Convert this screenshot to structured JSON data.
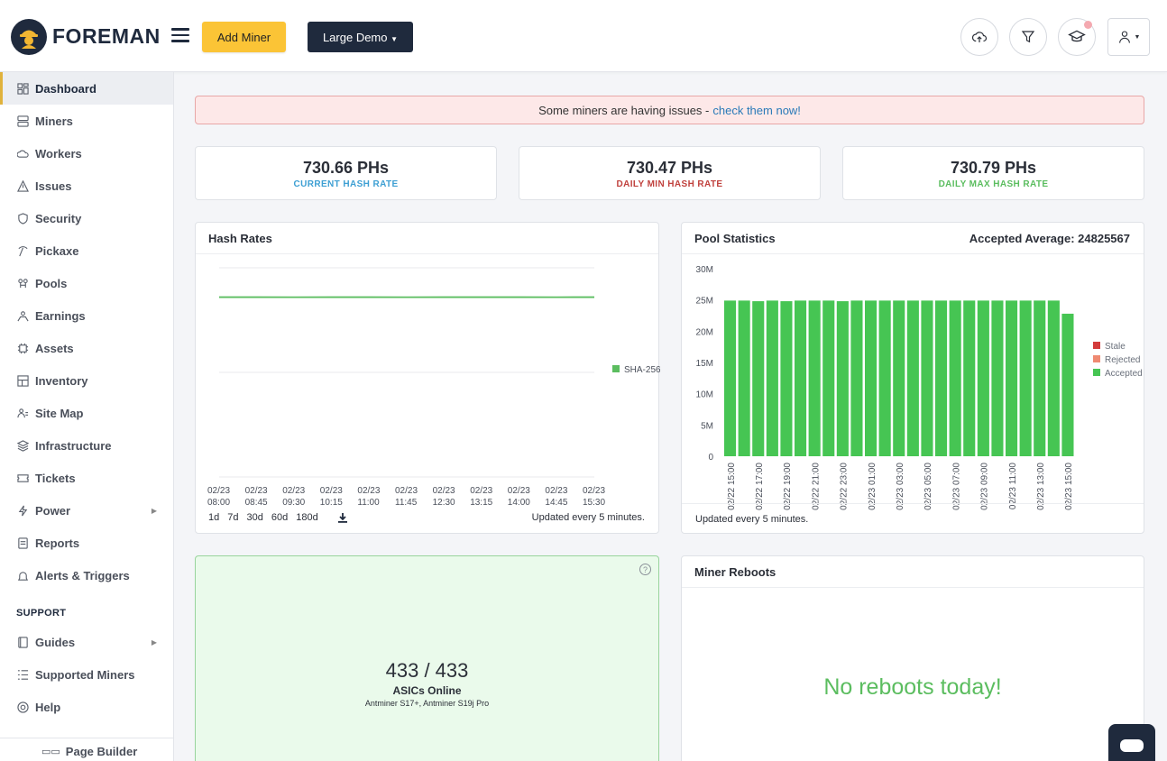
{
  "header": {
    "brand": "FOREMAN",
    "add_miner_label": "Add Miner",
    "site_select_label": "Large Demo"
  },
  "sidebar": {
    "items": [
      {
        "label": "Dashboard",
        "icon": "dashboard-icon"
      },
      {
        "label": "Miners",
        "icon": "server-icon"
      },
      {
        "label": "Workers",
        "icon": "cloud-icon"
      },
      {
        "label": "Issues",
        "icon": "warning-icon"
      },
      {
        "label": "Security",
        "icon": "shield-icon"
      },
      {
        "label": "Pickaxe",
        "icon": "pickaxe-icon"
      },
      {
        "label": "Pools",
        "icon": "pools-icon"
      },
      {
        "label": "Earnings",
        "icon": "earnings-icon"
      },
      {
        "label": "Assets",
        "icon": "chip-icon"
      },
      {
        "label": "Inventory",
        "icon": "inventory-icon"
      },
      {
        "label": "Site Map",
        "icon": "sitemap-icon"
      },
      {
        "label": "Infrastructure",
        "icon": "layers-icon"
      },
      {
        "label": "Tickets",
        "icon": "ticket-icon"
      },
      {
        "label": "Power",
        "icon": "bolt-icon"
      },
      {
        "label": "Reports",
        "icon": "report-icon"
      },
      {
        "label": "Alerts & Triggers",
        "icon": "bell-icon"
      }
    ],
    "support_heading": "SUPPORT",
    "support_items": [
      {
        "label": "Guides",
        "icon": "book-icon"
      },
      {
        "label": "Supported Miners",
        "icon": "list-icon"
      },
      {
        "label": "Help",
        "icon": "help-icon"
      }
    ],
    "page_builder_label": "Page Builder"
  },
  "alert": {
    "text": "Some miners are having issues -",
    "link": "check them now!"
  },
  "stats": [
    {
      "value": "730.66 PHs",
      "label": "CURRENT HASH RATE",
      "color": "#3d9fd3"
    },
    {
      "value": "730.47 PHs",
      "label": "DAILY MIN HASH RATE",
      "color": "#c0413d"
    },
    {
      "value": "730.79 PHs",
      "label": "DAILY MAX HASH RATE",
      "color": "#5bbd5f"
    }
  ],
  "hash_rates": {
    "title": "Hash Rates",
    "ranges": [
      "1d",
      "7d",
      "30d",
      "60d",
      "180d"
    ],
    "updated": "Updated every 5 minutes."
  },
  "pool_stats": {
    "title": "Pool Statistics",
    "accepted_avg": "Accepted Average: 24825567",
    "updated": "Updated every 5 minutes."
  },
  "asics": {
    "count": "433 / 433",
    "label": "ASICs Online",
    "models": "Antminer S17+, Antminer S19j Pro"
  },
  "reboots": {
    "title": "Miner Reboots",
    "message": "No reboots today!"
  },
  "chart_data": [
    {
      "type": "line",
      "title": "Hash Rates",
      "x": [
        "02/23 08:00",
        "02/23 08:45",
        "02/23 09:30",
        "02/23 10:15",
        "02/23 11:00",
        "02/23 11:45",
        "02/23 12:30",
        "02/23 13:15",
        "02/23 14:00",
        "02/23 14:45",
        "02/23 15:30"
      ],
      "series": [
        {
          "name": "SHA-256",
          "color": "#5bbd5f",
          "values": [
            730.7,
            730.7,
            730.6,
            730.7,
            730.7,
            730.6,
            730.7,
            730.7,
            730.7,
            730.6,
            730.7
          ]
        }
      ],
      "ylim": [
        0,
        850
      ],
      "legend": "right"
    },
    {
      "type": "bar",
      "title": "Pool Statistics",
      "categories": [
        "02/22 15:00",
        "",
        "02/22 17:00",
        "",
        "02/22 19:00",
        "",
        "02/22 21:00",
        "",
        "02/22 23:00",
        "",
        "02/23 01:00",
        "",
        "02/23 03:00",
        "",
        "02/23 05:00",
        "",
        "02/23 07:00",
        "",
        "02/23 09:00",
        "",
        "02/23 11:00",
        "",
        "02/23 13:00",
        "",
        "02/23 15:00"
      ],
      "series": [
        {
          "name": "Stale",
          "color": "#d33b3b",
          "values": [
            0,
            0,
            0,
            0,
            0,
            0,
            0,
            0,
            0,
            0,
            0,
            0,
            0,
            0,
            0,
            0,
            0,
            0,
            0,
            0,
            0,
            0,
            0,
            0,
            0
          ]
        },
        {
          "name": "Rejected",
          "color": "#ef8a72",
          "values": [
            0,
            0,
            0,
            0,
            0,
            0,
            0,
            0,
            0,
            0,
            0,
            0,
            0,
            0,
            0,
            0,
            0,
            0,
            0,
            0,
            0,
            0,
            0,
            0,
            0
          ]
        },
        {
          "name": "Accepted",
          "color": "#46c553",
          "values": [
            24900000,
            24900000,
            24800000,
            24900000,
            24800000,
            24900000,
            24900000,
            24900000,
            24800000,
            24900000,
            24900000,
            24900000,
            24900000,
            24900000,
            24900000,
            24900000,
            24900000,
            24900000,
            24900000,
            24900000,
            24900000,
            24900000,
            24900000,
            24900000,
            22800000
          ]
        }
      ],
      "yticks": [
        "0",
        "5M",
        "10M",
        "15M",
        "20M",
        "25M",
        "30M"
      ],
      "ylim": [
        0,
        30000000
      ],
      "legend": "right"
    }
  ]
}
